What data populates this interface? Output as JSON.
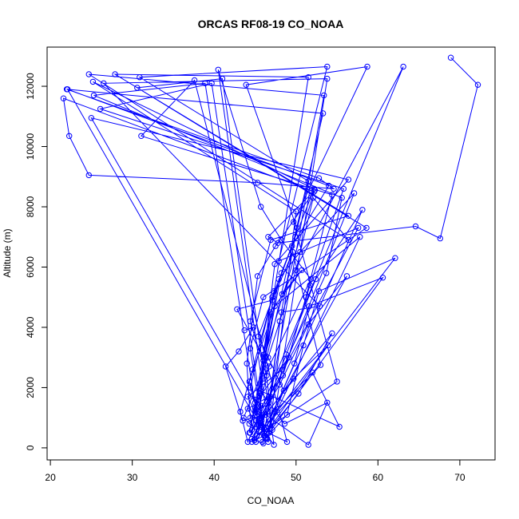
{
  "chart_data": {
    "type": "line",
    "title": "ORCAS RF08-19 CO_NOAA",
    "xlabel": "CO_NOAA",
    "ylabel": "Altitude (m)",
    "xlim": [
      19.6,
      74.3
    ],
    "ylim": [
      -400,
      13300
    ],
    "x_ticks": [
      20,
      30,
      40,
      50,
      60,
      70
    ],
    "y_ticks": [
      0,
      2000,
      4000,
      6000,
      8000,
      10000,
      12000
    ],
    "grid": false,
    "legend": "none",
    "markers": "open-circle",
    "series": [
      {
        "color": "#0000ff",
        "points": [
          [
            68.9,
            12950
          ],
          [
            72.2,
            12050
          ],
          [
            67.6,
            6950
          ],
          [
            64.6,
            7350
          ],
          [
            47.8,
            6800
          ],
          [
            46.6,
            7000
          ],
          [
            52.3,
            8550
          ],
          [
            47.5,
            6700
          ],
          [
            45.3,
            5700
          ],
          [
            44.0,
            2800
          ],
          [
            44.4,
            1000
          ],
          [
            45.7,
            1400
          ],
          [
            46.1,
            400
          ],
          [
            44.9,
            250
          ],
          [
            46.0,
            150
          ],
          [
            45.6,
            1800
          ],
          [
            47.3,
            5200
          ],
          [
            44.7,
            2600
          ],
          [
            43.2,
            1200
          ],
          [
            44.1,
            200
          ],
          [
            63.1,
            12650
          ],
          [
            48.3,
            5100
          ],
          [
            50.7,
            5900
          ],
          [
            46.8,
            4500
          ],
          [
            45.1,
            1600
          ],
          [
            44.3,
            500
          ],
          [
            53.3,
            11100
          ],
          [
            22.0,
            11900
          ],
          [
            52.8,
            8950
          ],
          [
            54.6,
            8600
          ],
          [
            45.3,
            8800
          ],
          [
            24.7,
            9050
          ],
          [
            22.3,
            10350
          ],
          [
            21.6,
            11600
          ],
          [
            52.2,
            8500
          ],
          [
            46.0,
            2900
          ],
          [
            45.5,
            800
          ],
          [
            44.6,
            300
          ],
          [
            55.0,
            2200
          ],
          [
            49.7,
            7500
          ],
          [
            58.7,
            12650
          ],
          [
            43.9,
            12050
          ],
          [
            50.1,
            7300
          ],
          [
            48.0,
            4200
          ],
          [
            46.9,
            1700
          ],
          [
            45.2,
            400
          ],
          [
            57.1,
            8450
          ],
          [
            50.5,
            6500
          ],
          [
            47.9,
            5600
          ],
          [
            46.2,
            3000
          ],
          [
            45.0,
            1300
          ],
          [
            46.7,
            500
          ],
          [
            40.5,
            12550
          ],
          [
            45.7,
            8000
          ],
          [
            48.2,
            6900
          ],
          [
            51.8,
            5600
          ],
          [
            46.0,
            2300
          ],
          [
            44.6,
            600
          ],
          [
            57.6,
            7300
          ],
          [
            47.9,
            6200
          ],
          [
            53.8,
            12650
          ],
          [
            30.9,
            12300
          ],
          [
            51.5,
            8850
          ],
          [
            49.9,
            7000
          ],
          [
            47.1,
            5000
          ],
          [
            44.4,
            2000
          ],
          [
            46.1,
            500
          ],
          [
            53.4,
            11700
          ],
          [
            24.7,
            12400
          ],
          [
            56.4,
            6900
          ],
          [
            52.1,
            8300
          ],
          [
            50.0,
            5900
          ],
          [
            46.6,
            3000
          ],
          [
            43.6,
            1000
          ],
          [
            46.6,
            200
          ],
          [
            50.0,
            7850
          ],
          [
            25.2,
            12150
          ],
          [
            52.2,
            8600
          ],
          [
            48.2,
            5800
          ],
          [
            45.0,
            1200
          ],
          [
            51.5,
            12300
          ],
          [
            27.9,
            12400
          ],
          [
            56.4,
            7700
          ],
          [
            46.9,
            6900
          ],
          [
            44.4,
            4200
          ],
          [
            46.4,
            2400
          ],
          [
            47.1,
            600
          ],
          [
            53.8,
            12250
          ],
          [
            26.5,
            12100
          ],
          [
            52.9,
            4700
          ],
          [
            48.2,
            4500
          ],
          [
            46.7,
            1500
          ],
          [
            44.6,
            200
          ],
          [
            53.0,
            2750
          ],
          [
            49.6,
            6500
          ],
          [
            47.1,
            4900
          ],
          [
            42.8,
            4600
          ],
          [
            46.7,
            2700
          ],
          [
            45.1,
            900
          ],
          [
            47.3,
            100
          ],
          [
            41.0,
            12250
          ],
          [
            30.6,
            11950
          ],
          [
            58.6,
            7300
          ],
          [
            46.0,
            5000
          ],
          [
            44.4,
            3300
          ],
          [
            45.8,
            900
          ],
          [
            46.3,
            300
          ],
          [
            39.7,
            12100
          ],
          [
            26.1,
            11250
          ],
          [
            55.8,
            8600
          ],
          [
            51.7,
            5400
          ],
          [
            48.4,
            2400
          ],
          [
            44.3,
            800
          ],
          [
            48.9,
            200
          ],
          [
            37.6,
            12200
          ],
          [
            31.1,
            10350
          ],
          [
            54.4,
            8400
          ],
          [
            51.2,
            5000
          ],
          [
            49.1,
            3000
          ],
          [
            45.0,
            1500
          ],
          [
            25.0,
            10950
          ],
          [
            56.4,
            8900
          ],
          [
            47.4,
            6100
          ],
          [
            46.1,
            3100
          ],
          [
            46.7,
            1700
          ],
          [
            44.1,
            1300
          ],
          [
            45.5,
            550
          ],
          [
            38.9,
            12100
          ],
          [
            25.3,
            11700
          ],
          [
            55.6,
            8300
          ],
          [
            53.7,
            5800
          ],
          [
            48.3,
            2600
          ],
          [
            44.1,
            1700
          ],
          [
            46.5,
            300
          ],
          [
            22.1,
            11900
          ],
          [
            54.0,
            8700
          ],
          [
            49.5,
            6700
          ],
          [
            45.4,
            3700
          ],
          [
            48.5,
            1900
          ],
          [
            46.2,
            400
          ],
          [
            57.8,
            7000
          ],
          [
            47.4,
            4700
          ],
          [
            44.3,
            2200
          ],
          [
            46.1,
            650
          ],
          [
            62.1,
            6300
          ],
          [
            52.8,
            5200
          ],
          [
            50.9,
            3400
          ],
          [
            48.9,
            1100
          ],
          [
            45.9,
            200
          ],
          [
            60.6,
            5650
          ],
          [
            51.6,
            4700
          ],
          [
            49.8,
            2800
          ],
          [
            46.6,
            800
          ],
          [
            58.1,
            7900
          ],
          [
            52.4,
            5600
          ],
          [
            48.8,
            3100
          ],
          [
            45.8,
            1000
          ],
          [
            45.1,
            200
          ],
          [
            56.2,
            5700
          ],
          [
            51.5,
            4100
          ],
          [
            48.0,
            2100
          ],
          [
            44.4,
            500
          ],
          [
            54.4,
            3800
          ],
          [
            50.3,
            1800
          ],
          [
            46.1,
            400
          ],
          [
            53.9,
            3400
          ],
          [
            49.7,
            2300
          ],
          [
            46.3,
            1100
          ],
          [
            51.5,
            100
          ],
          [
            53.8,
            1500
          ],
          [
            48.6,
            800
          ],
          [
            45.6,
            1900
          ],
          [
            55.3,
            700
          ],
          [
            52.0,
            2500
          ],
          [
            47.4,
            1200
          ],
          [
            43.5,
            900
          ],
          [
            41.4,
            2700
          ],
          [
            43.0,
            3200
          ],
          [
            44.8,
            4000
          ],
          [
            43.7,
            3900
          ]
        ]
      }
    ]
  }
}
